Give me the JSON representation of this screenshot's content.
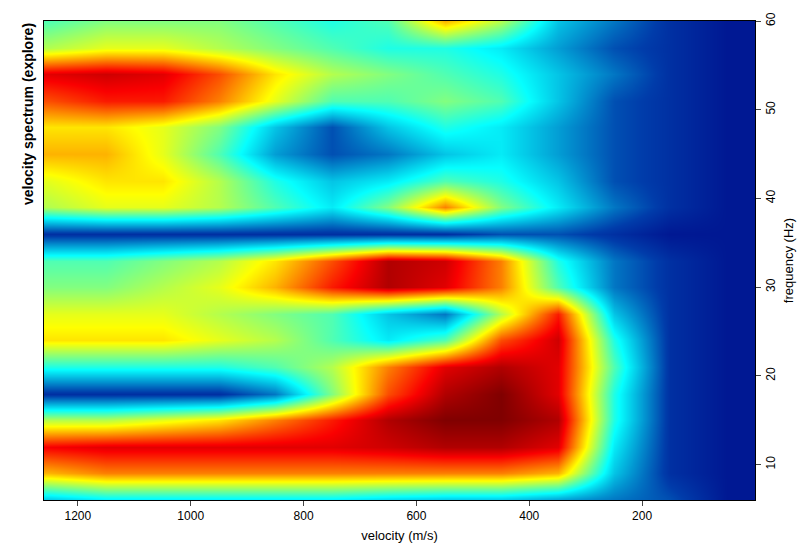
{
  "chart_data": {
    "type": "heatmap",
    "title": "velocity spectrum (explore)",
    "x_label": "velocity (m/s)",
    "y_label": "frequency (Hz)",
    "color": "Jet",
    "x": [
      50,
      150,
      250,
      350,
      450,
      550,
      650,
      750,
      850,
      950,
      1050,
      1150,
      1250
    ],
    "y": [
      6,
      9,
      12,
      15,
      18,
      21,
      24,
      27,
      30,
      33,
      36,
      39,
      42,
      45,
      48,
      51,
      54,
      57,
      60
    ],
    "z": [
      [
        0.05,
        0.15,
        0.2,
        0.25,
        0.3,
        0.3,
        0.32,
        0.35,
        0.35,
        0.35,
        0.35,
        0.35,
        0.3
      ],
      [
        0.05,
        0.1,
        0.3,
        0.7,
        0.75,
        0.75,
        0.75,
        0.75,
        0.75,
        0.75,
        0.75,
        0.75,
        0.7
      ],
      [
        0.05,
        0.1,
        0.35,
        0.9,
        0.95,
        0.95,
        0.92,
        0.9,
        0.9,
        0.9,
        0.9,
        0.9,
        0.88
      ],
      [
        0.05,
        0.1,
        0.4,
        0.95,
        1.0,
        1.0,
        0.95,
        0.85,
        0.75,
        0.65,
        0.6,
        0.55,
        0.55
      ],
      [
        0.05,
        0.1,
        0.4,
        0.9,
        1.0,
        0.95,
        0.8,
        0.5,
        0.2,
        0.1,
        0.1,
        0.1,
        0.1
      ],
      [
        0.05,
        0.1,
        0.45,
        0.9,
        0.95,
        0.9,
        0.75,
        0.55,
        0.45,
        0.4,
        0.4,
        0.4,
        0.4
      ],
      [
        0.05,
        0.1,
        0.4,
        0.92,
        0.8,
        0.45,
        0.35,
        0.45,
        0.55,
        0.6,
        0.65,
        0.65,
        0.65
      ],
      [
        0.05,
        0.1,
        0.3,
        0.85,
        0.55,
        0.2,
        0.3,
        0.45,
        0.5,
        0.55,
        0.6,
        0.6,
        0.6
      ],
      [
        0.05,
        0.1,
        0.2,
        0.45,
        0.75,
        0.9,
        0.95,
        0.85,
        0.7,
        0.6,
        0.55,
        0.5,
        0.5
      ],
      [
        0.05,
        0.1,
        0.2,
        0.4,
        0.75,
        0.92,
        0.95,
        0.8,
        0.65,
        0.55,
        0.5,
        0.45,
        0.45
      ],
      [
        0.05,
        0.05,
        0.1,
        0.15,
        0.15,
        0.1,
        0.1,
        0.1,
        0.1,
        0.1,
        0.1,
        0.1,
        0.1
      ],
      [
        0.05,
        0.1,
        0.2,
        0.35,
        0.5,
        0.75,
        0.5,
        0.35,
        0.45,
        0.55,
        0.6,
        0.6,
        0.55
      ],
      [
        0.05,
        0.1,
        0.15,
        0.3,
        0.4,
        0.45,
        0.35,
        0.3,
        0.4,
        0.55,
        0.65,
        0.65,
        0.6
      ],
      [
        0.05,
        0.1,
        0.15,
        0.25,
        0.35,
        0.3,
        0.2,
        0.15,
        0.25,
        0.45,
        0.6,
        0.7,
        0.7
      ],
      [
        0.05,
        0.1,
        0.15,
        0.25,
        0.35,
        0.4,
        0.3,
        0.15,
        0.3,
        0.5,
        0.6,
        0.65,
        0.65
      ],
      [
        0.05,
        0.1,
        0.15,
        0.3,
        0.45,
        0.5,
        0.45,
        0.45,
        0.6,
        0.75,
        0.85,
        0.85,
        0.8
      ],
      [
        0.05,
        0.1,
        0.2,
        0.3,
        0.4,
        0.45,
        0.5,
        0.55,
        0.65,
        0.8,
        0.9,
        0.92,
        0.9
      ],
      [
        0.05,
        0.1,
        0.15,
        0.25,
        0.35,
        0.4,
        0.4,
        0.45,
        0.5,
        0.55,
        0.6,
        0.6,
        0.55
      ],
      [
        0.05,
        0.1,
        0.2,
        0.3,
        0.55,
        0.7,
        0.45,
        0.4,
        0.45,
        0.5,
        0.5,
        0.5,
        0.45
      ]
    ],
    "zlim": [
      0,
      1
    ],
    "xlim": [
      1260,
      0
    ],
    "xticks": [
      200,
      400,
      600,
      800,
      1000,
      1200
    ],
    "ylim": [
      6,
      60
    ],
    "yticks": [
      10,
      20,
      30,
      40,
      50,
      60
    ]
  }
}
